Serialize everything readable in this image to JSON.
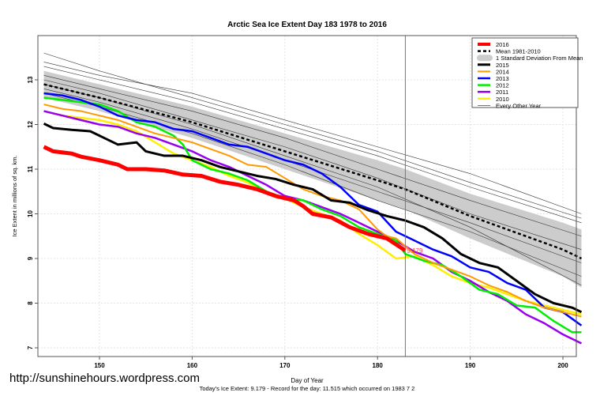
{
  "chart_data": {
    "type": "line",
    "title": "Arctic Sea Ice Extent Day 183 1978 to 2016",
    "xlabel": "Day of Year",
    "ylabel": "Ice Extent in millions of sq. km.",
    "xlim": [
      143.3,
      203
    ],
    "ylim": [
      6.8,
      14.0
    ],
    "xticks": [
      150,
      160,
      170,
      180,
      190,
      200
    ],
    "yticks": [
      7,
      8,
      9,
      10,
      11,
      12,
      13
    ],
    "grid": true,
    "legend_position": "top-right",
    "marker_day": 183,
    "annotation": "9.179",
    "footer": "Today's Ice Extent: 9.179  - Record for the day: 11.515 which occurred on 1983 7 2",
    "watermark": "http://sunshinehours.wordpress.com",
    "band": {
      "name": "1 Standard Deviation From Mean",
      "color": "#cccccc",
      "x": [
        144,
        150,
        160,
        170,
        180,
        183,
        190,
        200,
        202
      ],
      "lower": [
        12.6,
        12.3,
        11.7,
        11.0,
        10.3,
        10.1,
        9.45,
        8.6,
        8.35
      ],
      "upper": [
        13.2,
        12.9,
        12.4,
        11.8,
        11.2,
        11.0,
        10.45,
        9.8,
        9.65
      ]
    },
    "mean": {
      "name": "Mean 1981-2010",
      "color": "#000000",
      "x": [
        144,
        150,
        160,
        170,
        180,
        183,
        190,
        200,
        202
      ],
      "y": [
        12.9,
        12.6,
        12.05,
        11.4,
        10.75,
        10.55,
        9.95,
        9.2,
        9.0
      ]
    },
    "other_years": {
      "name": "Every Other Year",
      "color": "#333333",
      "x": [
        144,
        150,
        160,
        170,
        180,
        190,
        202
      ],
      "series": [
        [
          13.4,
          13.1,
          12.7,
          12.1,
          11.5,
          10.9,
          10.0
        ],
        [
          13.3,
          13.0,
          12.5,
          11.9,
          11.3,
          10.6,
          9.8
        ],
        [
          13.1,
          12.8,
          12.3,
          11.7,
          11.0,
          10.3,
          9.5
        ],
        [
          13.0,
          12.7,
          12.1,
          11.5,
          10.8,
          10.0,
          9.2
        ],
        [
          12.8,
          12.5,
          11.9,
          11.2,
          10.5,
          9.8,
          8.9
        ],
        [
          12.7,
          12.4,
          11.8,
          11.1,
          10.3,
          9.6,
          8.6
        ],
        [
          13.6,
          13.2,
          12.6,
          12.0,
          11.4,
          10.7,
          9.9
        ],
        [
          12.9,
          12.6,
          12.0,
          11.3,
          10.6,
          9.7,
          8.4
        ]
      ]
    },
    "series": [
      {
        "name": "2016",
        "color": "#ff0000",
        "width": 5,
        "x": [
          144,
          145,
          147,
          148,
          150,
          152,
          153,
          155,
          157,
          159,
          161,
          163,
          165,
          167,
          169,
          171,
          172,
          173,
          175,
          177,
          179,
          181,
          183
        ],
        "y": [
          11.5,
          11.4,
          11.35,
          11.28,
          11.2,
          11.1,
          11.0,
          11.0,
          10.97,
          10.88,
          10.85,
          10.72,
          10.65,
          10.55,
          10.4,
          10.3,
          10.17,
          10.0,
          9.92,
          9.7,
          9.55,
          9.45,
          9.179
        ]
      },
      {
        "name": "2015",
        "color": "#000000",
        "width": 3,
        "x": [
          144,
          145,
          147,
          149,
          150,
          152,
          154,
          155,
          157,
          159,
          161,
          163,
          165,
          167,
          169,
          171,
          173,
          175,
          177,
          179,
          181,
          183,
          185,
          187,
          189,
          191,
          193,
          195,
          197,
          199,
          201,
          202
        ],
        "y": [
          12.02,
          11.92,
          11.88,
          11.85,
          11.75,
          11.55,
          11.6,
          11.4,
          11.3,
          11.3,
          11.2,
          11.05,
          10.95,
          10.85,
          10.78,
          10.65,
          10.55,
          10.3,
          10.25,
          10.08,
          9.95,
          9.85,
          9.7,
          9.45,
          9.1,
          8.9,
          8.8,
          8.5,
          8.2,
          8.0,
          7.9,
          7.8
        ]
      },
      {
        "name": "2014",
        "color": "#ff9900",
        "width": 2,
        "x": [
          144,
          146,
          148,
          150,
          152,
          154,
          156,
          158,
          160,
          162,
          164,
          166,
          168,
          170,
          172,
          174,
          176,
          178,
          180,
          181,
          182,
          184,
          186,
          188,
          190,
          192,
          194,
          196,
          198,
          200,
          202
        ],
        "y": [
          12.45,
          12.35,
          12.3,
          12.2,
          12.1,
          11.95,
          11.8,
          11.7,
          11.6,
          11.45,
          11.3,
          11.1,
          11.05,
          10.8,
          10.55,
          10.4,
          10.3,
          10.1,
          9.65,
          9.5,
          9.45,
          9.1,
          8.9,
          8.75,
          8.6,
          8.4,
          8.25,
          8.05,
          7.9,
          7.8,
          7.7
        ]
      },
      {
        "name": "2013",
        "color": "#0000ff",
        "width": 2.5,
        "x": [
          144,
          146,
          148,
          150,
          152,
          154,
          156,
          158,
          160,
          162,
          164,
          166,
          168,
          170,
          172,
          174,
          176,
          178,
          180,
          182,
          184,
          186,
          188,
          190,
          192,
          194,
          196,
          198,
          200,
          202
        ],
        "y": [
          12.7,
          12.65,
          12.55,
          12.4,
          12.2,
          12.1,
          12.05,
          11.9,
          11.85,
          11.7,
          11.55,
          11.5,
          11.35,
          11.2,
          11.1,
          10.9,
          10.6,
          10.2,
          10.05,
          9.6,
          9.4,
          9.2,
          9.05,
          8.8,
          8.7,
          8.45,
          8.3,
          7.9,
          7.8,
          7.5
        ]
      },
      {
        "name": "2012",
        "color": "#00ee00",
        "width": 2.5,
        "x": [
          144,
          146,
          148,
          150,
          152,
          154,
          156,
          158,
          159,
          160,
          162,
          164,
          166,
          168,
          170,
          172,
          174,
          176,
          178,
          180,
          182,
          183,
          185,
          187,
          189,
          191,
          193,
          195,
          197,
          199,
          201,
          202
        ],
        "y": [
          12.6,
          12.55,
          12.5,
          12.45,
          12.3,
          12.05,
          11.95,
          11.75,
          11.55,
          11.2,
          11.0,
          10.9,
          10.75,
          10.5,
          10.35,
          10.3,
          10.1,
          9.95,
          9.7,
          9.55,
          9.4,
          9.1,
          8.95,
          8.85,
          8.6,
          8.3,
          8.2,
          7.95,
          7.9,
          7.6,
          7.35,
          7.35
        ]
      },
      {
        "name": "2011",
        "color": "#9900ee",
        "width": 2.5,
        "x": [
          144,
          146,
          148,
          150,
          152,
          154,
          156,
          158,
          160,
          162,
          164,
          166,
          168,
          170,
          172,
          174,
          176,
          178,
          180,
          182,
          184,
          186,
          188,
          190,
          192,
          194,
          196,
          198,
          200,
          202
        ],
        "y": [
          12.3,
          12.2,
          12.1,
          12.0,
          11.95,
          11.8,
          11.7,
          11.55,
          11.4,
          11.2,
          11.05,
          10.85,
          10.65,
          10.4,
          10.3,
          10.15,
          10.0,
          9.8,
          9.6,
          9.4,
          9.15,
          9.0,
          8.7,
          8.5,
          8.25,
          8.05,
          7.75,
          7.55,
          7.3,
          7.1
        ]
      },
      {
        "name": "2010",
        "color": "#ffee00",
        "width": 2.5,
        "x": [
          144,
          146,
          148,
          150,
          152,
          154,
          156,
          158,
          160,
          162,
          164,
          166,
          168,
          170,
          172,
          174,
          176,
          178,
          180,
          182,
          184,
          186,
          188,
          190,
          192,
          194,
          196,
          198,
          200,
          202
        ],
        "y": [
          12.3,
          12.2,
          12.15,
          12.1,
          12.0,
          11.85,
          11.6,
          11.35,
          11.2,
          11.05,
          10.85,
          10.7,
          10.5,
          10.35,
          10.15,
          10.0,
          9.85,
          9.55,
          9.3,
          9.0,
          9.05,
          8.85,
          8.6,
          8.45,
          8.35,
          8.2,
          8.05,
          7.95,
          7.85,
          7.75
        ]
      }
    ]
  }
}
